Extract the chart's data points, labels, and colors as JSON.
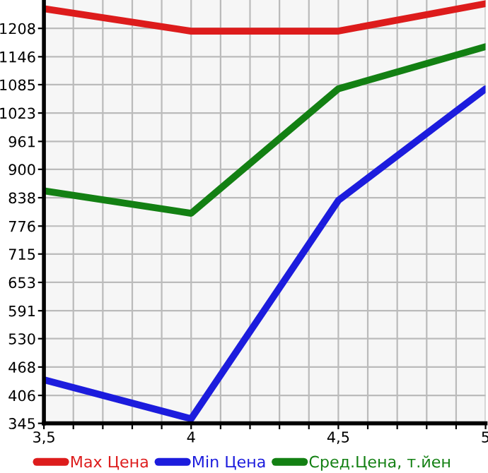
{
  "chart_data": {
    "type": "line",
    "x": [
      3.5,
      4,
      4.5,
      5
    ],
    "series": [
      {
        "name": "Max Цена",
        "color": "#dd1c1c",
        "values": [
          1251,
          1202,
          1202,
          1262
        ]
      },
      {
        "name": "Min Цена",
        "color": "#1c1cdd",
        "values": [
          440,
          355,
          832,
          1076
        ]
      },
      {
        "name": "Сред.Цена, т.йен",
        "color": "#138013",
        "values": [
          853,
          804,
          1076,
          1168
        ]
      }
    ],
    "xlim": [
      3.5,
      5
    ],
    "xticks": [
      {
        "value": 3.5,
        "label": "3,5"
      },
      {
        "value": 3.6,
        "label": null
      },
      {
        "value": 3.7,
        "label": null
      },
      {
        "value": 3.8,
        "label": null
      },
      {
        "value": 3.9,
        "label": null
      },
      {
        "value": 4,
        "label": "4"
      },
      {
        "value": 4.1,
        "label": null
      },
      {
        "value": 4.2,
        "label": null
      },
      {
        "value": 4.3,
        "label": null
      },
      {
        "value": 4.4,
        "label": null
      },
      {
        "value": 4.5,
        "label": "4,5"
      },
      {
        "value": 4.6,
        "label": null
      },
      {
        "value": 4.7,
        "label": null
      },
      {
        "value": 4.8,
        "label": null
      },
      {
        "value": 4.9,
        "label": null
      },
      {
        "value": 5,
        "label": "5"
      }
    ],
    "ylim": [
      345,
      1270
    ],
    "yticks": [
      345,
      406,
      468,
      530,
      591,
      653,
      715,
      776,
      838,
      900,
      961,
      1023,
      1085,
      1146,
      1208
    ],
    "grid": true,
    "legend": "bottom",
    "marker": "none",
    "line_style": "solid"
  }
}
